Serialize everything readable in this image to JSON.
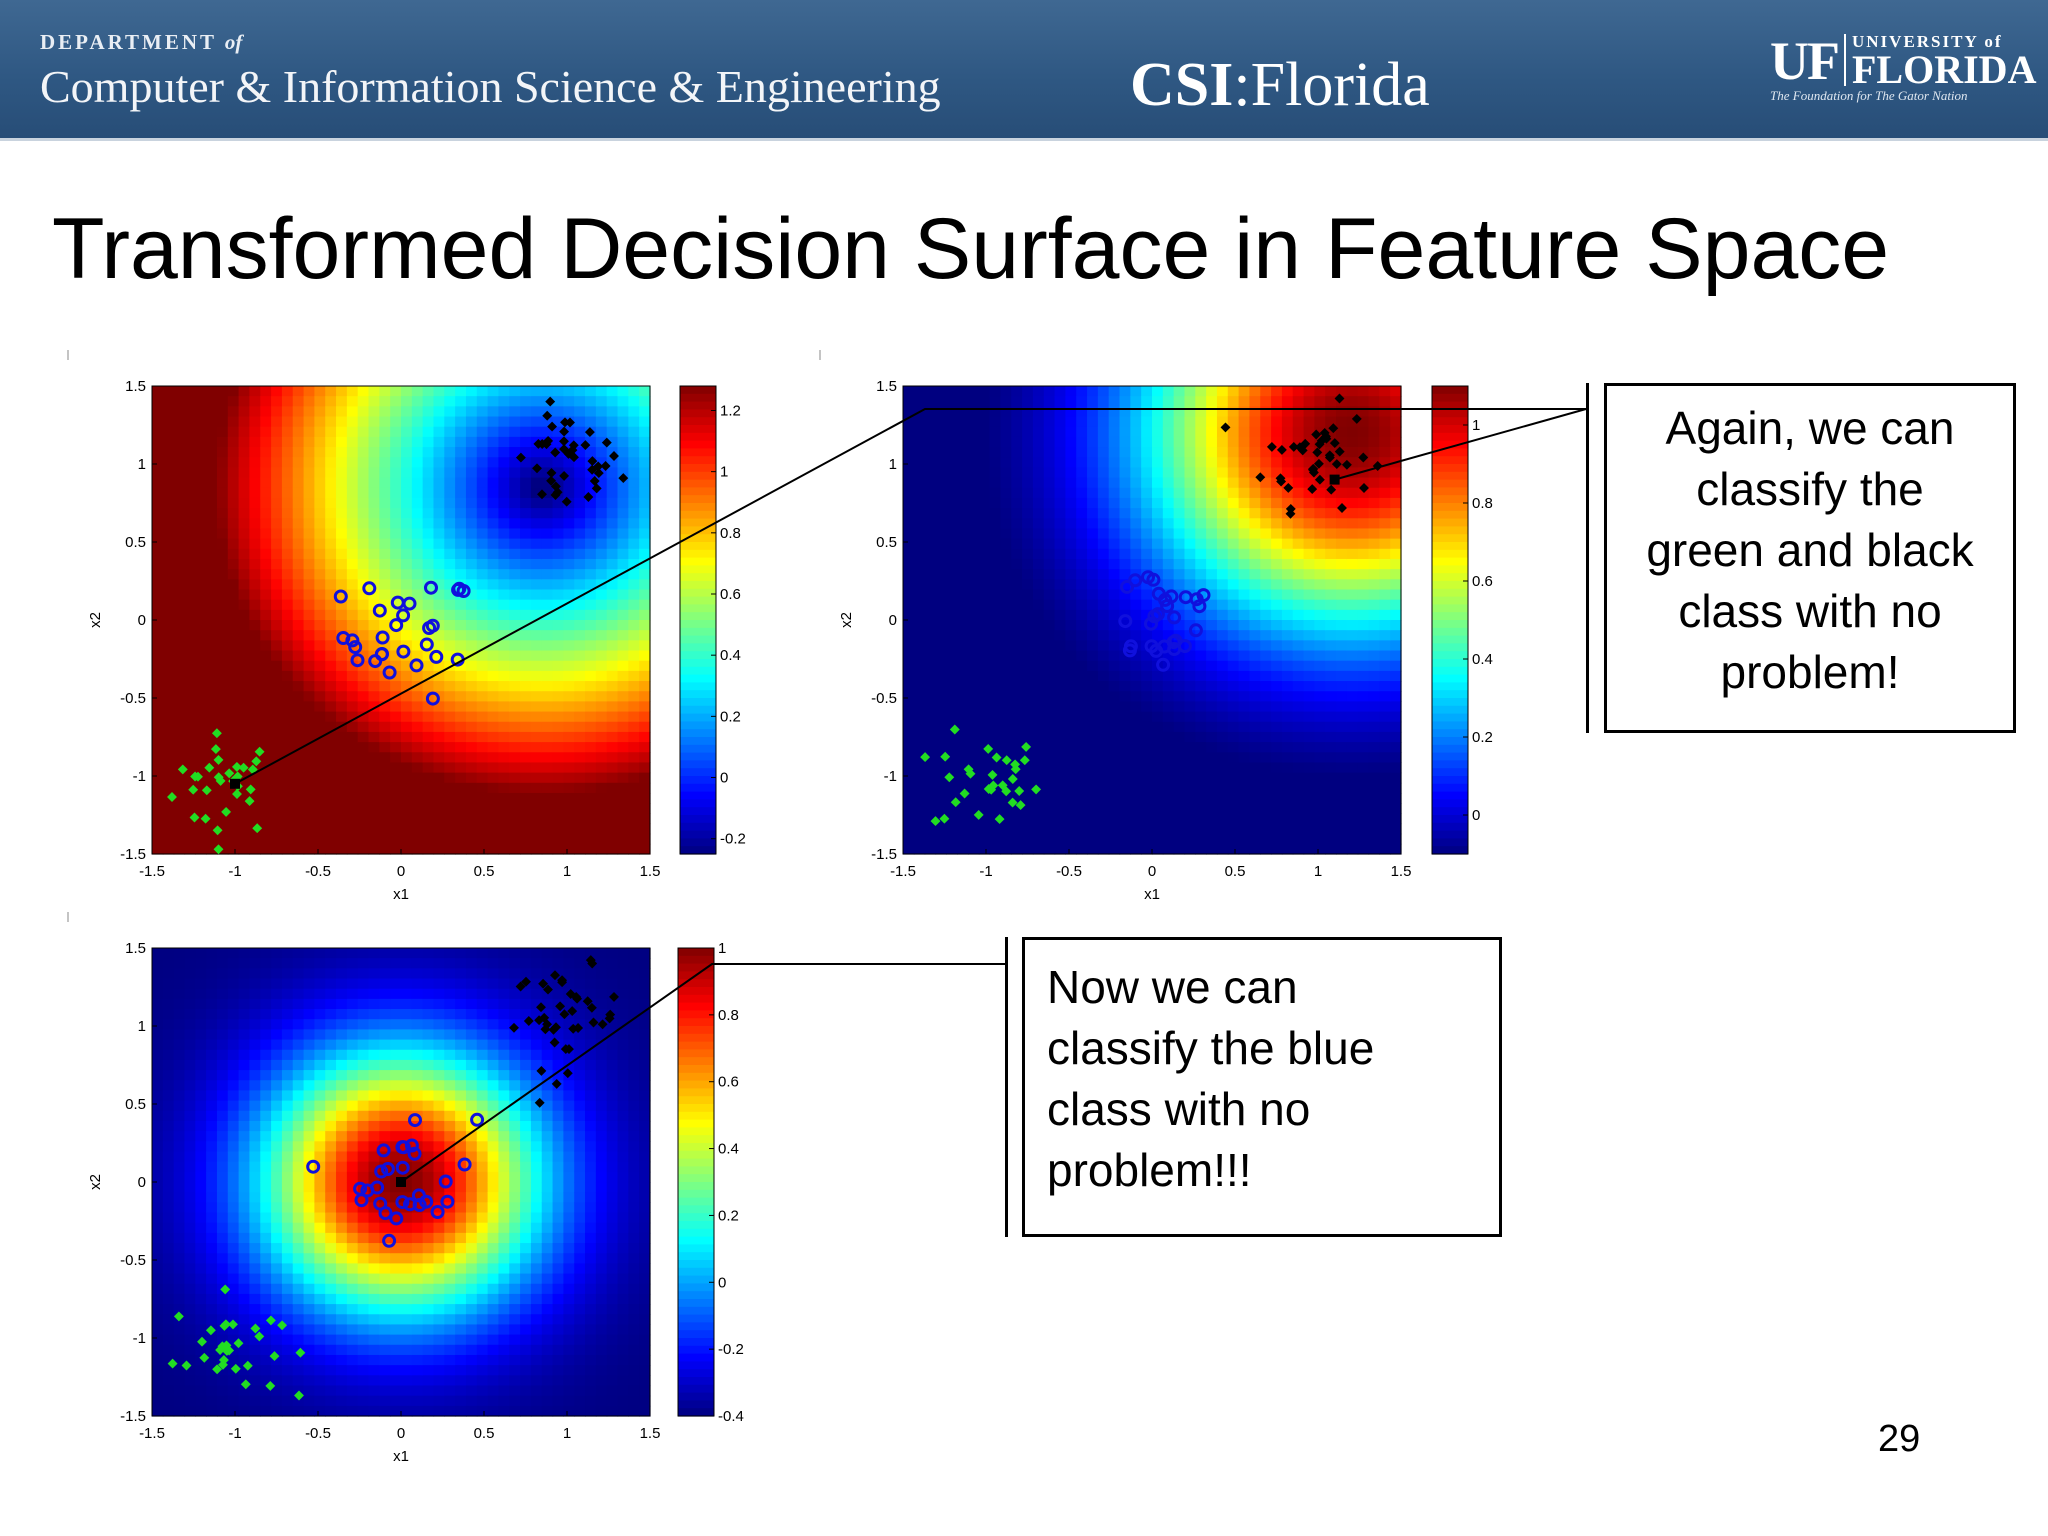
{
  "header": {
    "dept_line1": "DEPARTMENT",
    "dept_of": "of",
    "dept_line2": "Computer & Information Science & Engineering",
    "csi_bold": "CSI",
    "csi_rest": ":Florida",
    "uf_mark": "UF",
    "uf_university": "UNIVERSITY of",
    "uf_florida": "FLORIDA",
    "uf_tagline": "The Foundation for The Gator Nation"
  },
  "slide": {
    "title": "Transformed Decision Surface in Feature Space",
    "page_number": "29"
  },
  "callouts": [
    {
      "lines": [
        "Again, we can",
        "classify the",
        "green and black",
        "class with no",
        "problem!"
      ]
    },
    {
      "lines": [
        "Now we can",
        "classify the blue",
        "class with no",
        "problem!!!"
      ]
    }
  ],
  "colors": {
    "header_bg": "#2f5883",
    "green_class": "#22dd22",
    "black_class": "#000000",
    "blue_class": "#1010dd"
  },
  "chart_data": [
    {
      "type": "heatmap",
      "title": "",
      "xlabel": "x1",
      "ylabel": "x2",
      "xlim": [
        -1.5,
        1.5
      ],
      "ylim": [
        -1.5,
        1.5
      ],
      "xticks": [
        "-1.5",
        "-1",
        "-0.5",
        "0",
        "0.5",
        "1",
        "1.5"
      ],
      "yticks": [
        "1.5",
        "1",
        "0.5",
        "0",
        "-0.5",
        "-1",
        "-1.5"
      ],
      "colormap": "jet",
      "surface": "rbf",
      "center": [
        0.85,
        0.85
      ],
      "value_range": [
        -0.25,
        1.28
      ],
      "colorbar_ticks": [
        "1.2",
        "1",
        "0.8",
        "0.6",
        "0.4",
        "0.2",
        "0",
        "-0.2"
      ],
      "colorbar_tick_values": [
        1.2,
        1,
        0.8,
        0.6,
        0.4,
        0.2,
        0,
        -0.2
      ],
      "marked_point": [
        -1.0,
        -1.05
      ],
      "series": [
        {
          "name": "green",
          "center": [
            -1.05,
            -1.05
          ],
          "count": 30
        },
        {
          "name": "blue",
          "center": [
            0.05,
            -0.1
          ],
          "count": 28
        },
        {
          "name": "black",
          "center": [
            1.0,
            1.0
          ],
          "count": 40
        }
      ]
    },
    {
      "type": "heatmap",
      "title": "",
      "xlabel": "x1",
      "ylabel": "x2",
      "xlim": [
        -1.5,
        1.5
      ],
      "ylim": [
        -1.5,
        1.5
      ],
      "xticks": [
        "-1.5",
        "-1",
        "-0.5",
        "0",
        "0.5",
        "1",
        "1.5"
      ],
      "yticks": [
        "1.5",
        "1",
        "0.5",
        "0",
        "-0.5",
        "-1",
        "-1.5"
      ],
      "colormap": "jet",
      "surface": "rbf",
      "center": [
        1.2,
        1.2
      ],
      "value_range": [
        -0.1,
        1.1
      ],
      "colorbar_ticks": [
        "1",
        "0.8",
        "0.6",
        "0.4",
        "0.2",
        "0"
      ],
      "colorbar_tick_values": [
        1,
        0.8,
        0.6,
        0.4,
        0.2,
        0
      ],
      "marked_point": [
        1.1,
        0.9
      ],
      "series": [
        {
          "name": "green",
          "center": [
            -1.0,
            -1.05
          ],
          "count": 30
        },
        {
          "name": "blue",
          "center": [
            0.05,
            0.05
          ],
          "count": 28
        },
        {
          "name": "black",
          "center": [
            1.0,
            1.05
          ],
          "count": 40
        }
      ]
    },
    {
      "type": "heatmap",
      "title": "",
      "xlabel": "x1",
      "ylabel": "x2",
      "xlim": [
        -1.5,
        1.5
      ],
      "ylim": [
        -1.5,
        1.5
      ],
      "xticks": [
        "-1.5",
        "-1",
        "-0.5",
        "0",
        "0.5",
        "1",
        "1.5"
      ],
      "yticks": [
        "1.5",
        "1",
        "0.5",
        "0",
        "-0.5",
        "-1",
        "-1.5"
      ],
      "colormap": "jet",
      "surface": "rbf",
      "center": [
        0.0,
        0.0
      ],
      "value_range": [
        -0.4,
        1.0
      ],
      "colorbar_ticks": [
        "1",
        "0.8",
        "0.6",
        "0.4",
        "0.2",
        "0",
        "-0.2",
        "-0.4"
      ],
      "colorbar_tick_values": [
        1,
        0.8,
        0.6,
        0.4,
        0.2,
        0,
        -0.2,
        -0.4
      ],
      "marked_point": [
        0.0,
        0.0
      ],
      "series": [
        {
          "name": "green",
          "center": [
            -1.05,
            -1.05
          ],
          "count": 30
        },
        {
          "name": "blue",
          "center": [
            0.05,
            0.05
          ],
          "count": 28
        },
        {
          "name": "black",
          "center": [
            1.0,
            1.05
          ],
          "count": 40
        }
      ]
    }
  ]
}
